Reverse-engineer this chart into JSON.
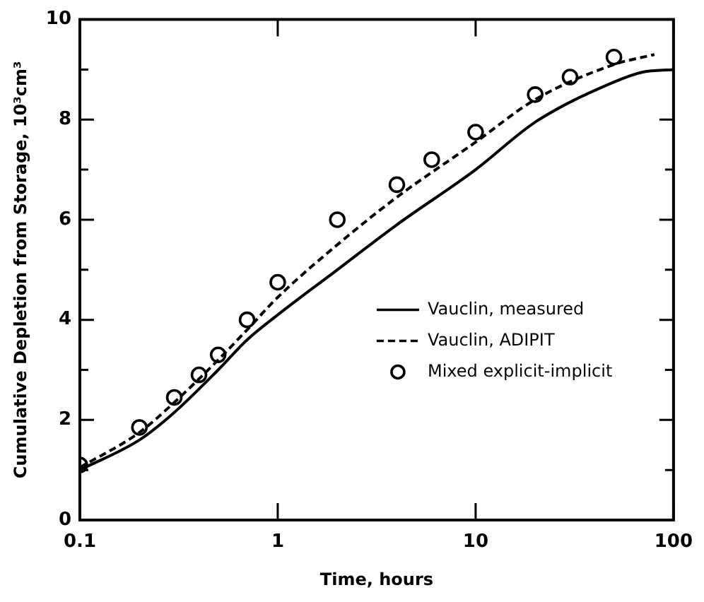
{
  "chart_data": {
    "type": "line",
    "xlabel": "Time, hours",
    "ylabel": "Cumulative Depletion from Storage, 10³cm³",
    "log": "x",
    "xlim": [
      0.1,
      100
    ],
    "xticks": [
      0.1,
      1,
      10,
      100
    ],
    "ylim": [
      0,
      10
    ],
    "yticks": [
      0,
      {
        "value": 1,
        "label": null
      },
      2,
      {
        "value": 3,
        "label": null
      },
      4,
      {
        "value": 5,
        "label": null
      },
      6,
      {
        "value": 7,
        "label": null
      },
      8,
      {
        "value": 9,
        "label": null
      },
      10
    ],
    "grid": false,
    "legend": "right",
    "series": [
      {
        "name": "Vauclin, measured",
        "color": "#000000",
        "line_style": "solid",
        "marker": "none",
        "x": [
          0.1,
          0.2,
          0.3,
          0.5,
          0.7,
          1,
          2,
          4,
          10,
          20,
          50,
          70,
          100
        ],
        "values": [
          1.0,
          1.6,
          2.15,
          3.0,
          3.6,
          4.1,
          5.0,
          5.9,
          7.0,
          7.95,
          8.75,
          8.95,
          9.0
        ]
      },
      {
        "name": "Vauclin, ADIPIT",
        "color": "#000000",
        "line_style": "dashed",
        "marker": "none",
        "x": [
          0.1,
          0.2,
          0.3,
          0.5,
          0.7,
          1,
          2,
          4,
          10,
          20,
          50,
          80
        ],
        "values": [
          1.05,
          1.75,
          2.35,
          3.2,
          3.8,
          4.45,
          5.5,
          6.45,
          7.55,
          8.4,
          9.1,
          9.3
        ]
      },
      {
        "name": "Mixed explicit-implicit",
        "type": "scatter",
        "color": "#000000",
        "marker": "circle",
        "x": [
          0.1,
          0.2,
          0.3,
          0.4,
          0.5,
          0.7,
          1,
          2,
          4,
          6,
          10,
          20,
          30,
          50
        ],
        "values": [
          1.1,
          1.85,
          2.45,
          2.9,
          3.3,
          4.0,
          4.75,
          6.0,
          6.7,
          7.2,
          7.75,
          8.5,
          8.85,
          9.25
        ]
      }
    ]
  }
}
